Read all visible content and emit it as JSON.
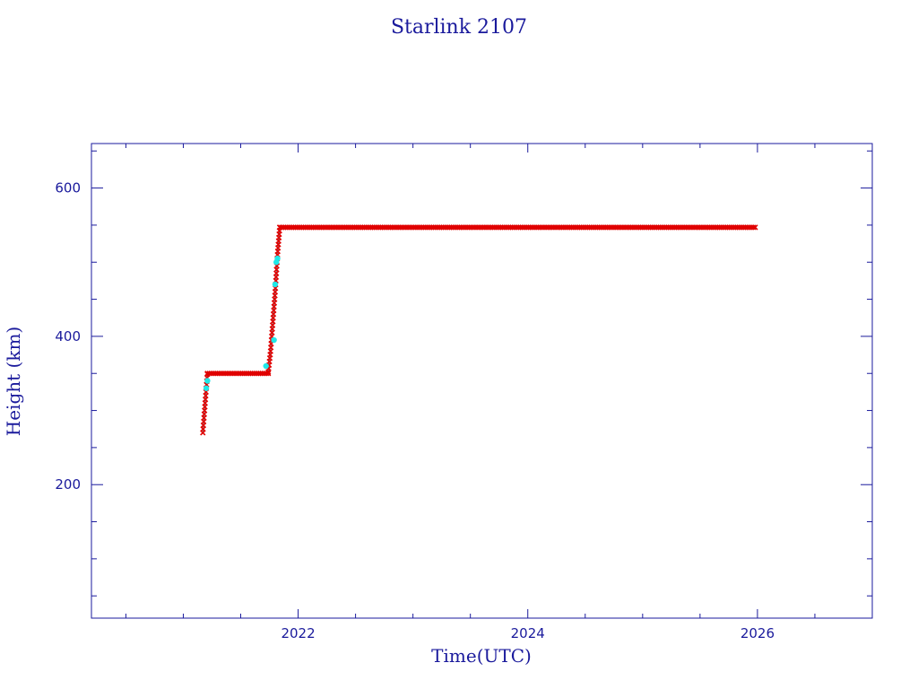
{
  "chart_data": {
    "type": "scatter",
    "title": "Starlink 2107",
    "xlabel": "Time(UTC)",
    "ylabel": "Height (km)",
    "xlim": [
      2020.2,
      2027.0
    ],
    "ylim": [
      20,
      660
    ],
    "xticks": [
      2022,
      2024,
      2026
    ],
    "yticks": [
      200,
      400,
      600
    ],
    "xtick_labels": [
      "2022",
      "2024",
      "2026"
    ],
    "ytick_labels": [
      "200",
      "400",
      "600"
    ],
    "x_minor_step": 0.5,
    "y_minor_step": 50,
    "grid": false,
    "colors": {
      "axes": "#1a1a9c",
      "primary": "#e00000",
      "secondary": "#20e8e8",
      "connector": "#555555"
    },
    "series": [
      {
        "marker": "x",
        "color": "#e00000",
        "segments": [
          {
            "x": [
              2021.17,
              2021.18,
              2021.19,
              2021.2,
              2021.21
            ],
            "y": [
              270,
              290,
              310,
              330,
              349
            ]
          },
          {
            "x_range": [
              2021.21,
              2021.74
            ],
            "y": 350
          },
          {
            "x": [
              2021.74,
              2021.76,
              2021.78,
              2021.8,
              2021.82,
              2021.84
            ],
            "y": [
              352,
              380,
              420,
              460,
              510,
              547
            ]
          },
          {
            "x_range": [
              2021.84,
              2025.98
            ],
            "y": 547
          }
        ]
      },
      {
        "marker": "circle",
        "color": "#20e8e8",
        "points": {
          "x": [
            2021.2,
            2021.21,
            2021.72,
            2021.79,
            2021.8,
            2021.81,
            2021.82
          ],
          "y": [
            330,
            340,
            360,
            395,
            470,
            500,
            505
          ]
        }
      }
    ]
  }
}
